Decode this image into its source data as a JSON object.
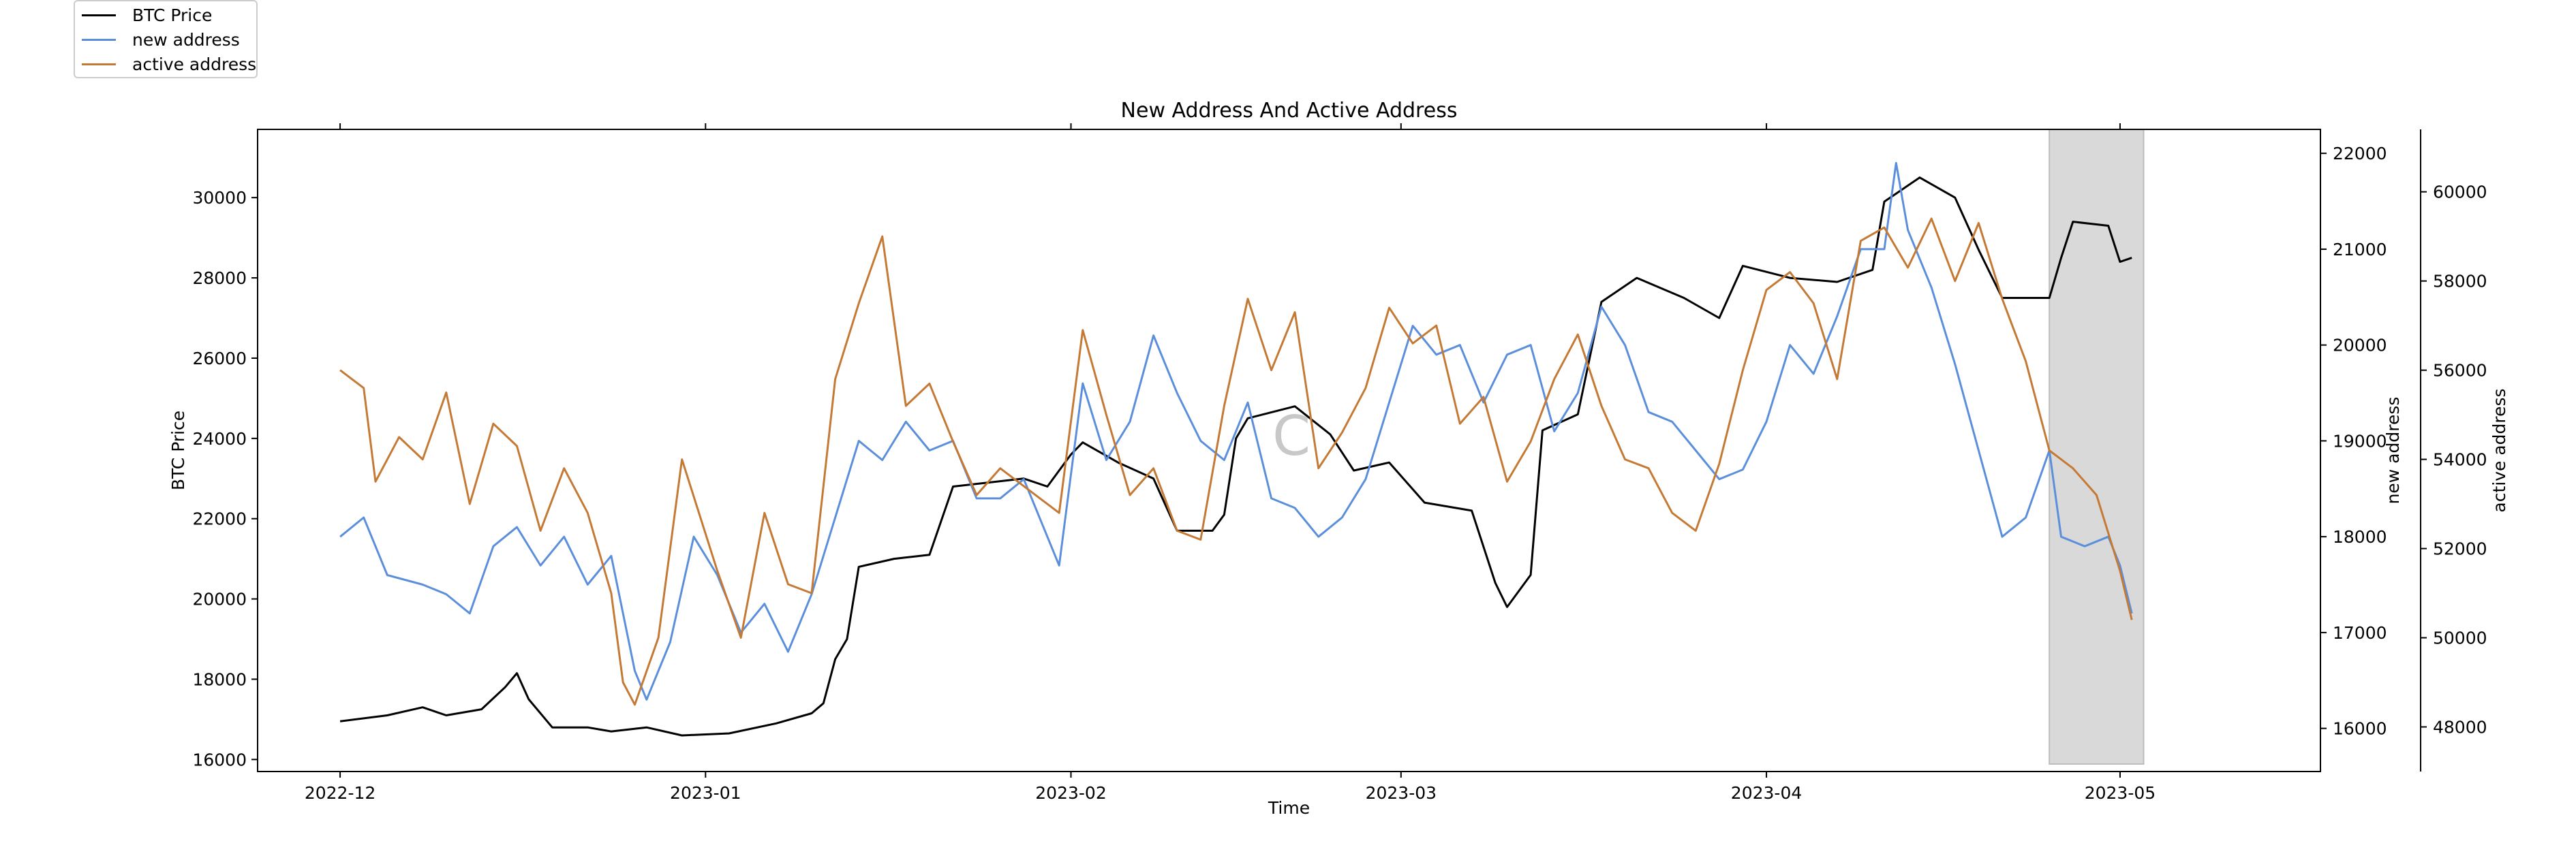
{
  "chart_data": {
    "type": "line",
    "title": "New Address And Active Address",
    "xlabel": "Time",
    "ylabel_left": "BTC Price",
    "ylabel_right1": "new address",
    "ylabel_right2": "active address",
    "x_ticks": [
      "2022-12",
      "2023-01",
      "2023-02",
      "2023-03",
      "2023-04",
      "2023-05"
    ],
    "x_range": [
      "2022-11-24",
      "2023-05-18"
    ],
    "y_left": {
      "ticks": [
        16000,
        18000,
        20000,
        22000,
        24000,
        26000,
        28000,
        30000
      ],
      "range": [
        15700,
        31700
      ]
    },
    "y_right1": {
      "ticks": [
        16000,
        17000,
        18000,
        19000,
        20000,
        21000,
        22000
      ],
      "range": [
        15550,
        22250
      ]
    },
    "y_right2": {
      "ticks": [
        48000,
        50000,
        52000,
        54000,
        56000,
        58000,
        60000
      ],
      "range": [
        47000,
        61400
      ]
    },
    "shaded_region": [
      "2023-04-25",
      "2023-05-03"
    ],
    "watermark": "C",
    "series": [
      {
        "name": "BTC Price",
        "axis": "left",
        "color": "#000000",
        "points": [
          [
            "2022-12-01",
            16950
          ],
          [
            "2022-12-05",
            17100
          ],
          [
            "2022-12-08",
            17300
          ],
          [
            "2022-12-10",
            17100
          ],
          [
            "2022-12-13",
            17250
          ],
          [
            "2022-12-15",
            17800
          ],
          [
            "2022-12-16",
            18150
          ],
          [
            "2022-12-17",
            17500
          ],
          [
            "2022-12-19",
            16800
          ],
          [
            "2022-12-22",
            16800
          ],
          [
            "2022-12-24",
            16700
          ],
          [
            "2022-12-27",
            16800
          ],
          [
            "2022-12-30",
            16600
          ],
          [
            "2023-01-03",
            16650
          ],
          [
            "2023-01-07",
            16900
          ],
          [
            "2023-01-10",
            17150
          ],
          [
            "2023-01-11",
            17400
          ],
          [
            "2023-01-12",
            18500
          ],
          [
            "2023-01-13",
            19000
          ],
          [
            "2023-01-14",
            20800
          ],
          [
            "2023-01-17",
            21000
          ],
          [
            "2023-01-20",
            21100
          ],
          [
            "2023-01-22",
            22800
          ],
          [
            "2023-01-25",
            22900
          ],
          [
            "2023-01-28",
            23000
          ],
          [
            "2023-01-30",
            22800
          ],
          [
            "2023-02-01",
            23600
          ],
          [
            "2023-02-02",
            23900
          ],
          [
            "2023-02-05",
            23400
          ],
          [
            "2023-02-08",
            23000
          ],
          [
            "2023-02-10",
            21700
          ],
          [
            "2023-02-13",
            21700
          ],
          [
            "2023-02-14",
            22100
          ],
          [
            "2023-02-15",
            24000
          ],
          [
            "2023-02-16",
            24500
          ],
          [
            "2023-02-20",
            24800
          ],
          [
            "2023-02-23",
            24100
          ],
          [
            "2023-02-25",
            23200
          ],
          [
            "2023-02-28",
            23400
          ],
          [
            "2023-03-03",
            22400
          ],
          [
            "2023-03-07",
            22200
          ],
          [
            "2023-03-09",
            20400
          ],
          [
            "2023-03-10",
            19800
          ],
          [
            "2023-03-12",
            20600
          ],
          [
            "2023-03-13",
            24200
          ],
          [
            "2023-03-16",
            24600
          ],
          [
            "2023-03-18",
            27400
          ],
          [
            "2023-03-21",
            28000
          ],
          [
            "2023-03-25",
            27500
          ],
          [
            "2023-03-28",
            27000
          ],
          [
            "2023-03-30",
            28300
          ],
          [
            "2023-04-03",
            28000
          ],
          [
            "2023-04-07",
            27900
          ],
          [
            "2023-04-10",
            28200
          ],
          [
            "2023-04-11",
            29900
          ],
          [
            "2023-04-14",
            30500
          ],
          [
            "2023-04-17",
            30000
          ],
          [
            "2023-04-19",
            28700
          ],
          [
            "2023-04-21",
            27500
          ],
          [
            "2023-04-25",
            27500
          ],
          [
            "2023-04-26",
            28500
          ],
          [
            "2023-04-27",
            29400
          ],
          [
            "2023-04-30",
            29300
          ],
          [
            "2023-05-01",
            28400
          ],
          [
            "2023-05-02",
            28500
          ]
        ]
      },
      {
        "name": "new address",
        "axis": "right1",
        "color": "#5b8fdc",
        "points": [
          [
            "2022-12-01",
            18000
          ],
          [
            "2022-12-03",
            18200
          ],
          [
            "2022-12-05",
            17600
          ],
          [
            "2022-12-08",
            17500
          ],
          [
            "2022-12-10",
            17400
          ],
          [
            "2022-12-12",
            17200
          ],
          [
            "2022-12-14",
            17900
          ],
          [
            "2022-12-16",
            18100
          ],
          [
            "2022-12-18",
            17700
          ],
          [
            "2022-12-20",
            18000
          ],
          [
            "2022-12-22",
            17500
          ],
          [
            "2022-12-24",
            17800
          ],
          [
            "2022-12-26",
            16600
          ],
          [
            "2022-12-27",
            16300
          ],
          [
            "2022-12-29",
            16900
          ],
          [
            "2022-12-31",
            18000
          ],
          [
            "2023-01-02",
            17600
          ],
          [
            "2023-01-04",
            17000
          ],
          [
            "2023-01-06",
            17300
          ],
          [
            "2023-01-08",
            16800
          ],
          [
            "2023-01-10",
            17400
          ],
          [
            "2023-01-12",
            18200
          ],
          [
            "2023-01-14",
            19000
          ],
          [
            "2023-01-16",
            18800
          ],
          [
            "2023-01-18",
            19200
          ],
          [
            "2023-01-20",
            18900
          ],
          [
            "2023-01-22",
            19000
          ],
          [
            "2023-01-24",
            18400
          ],
          [
            "2023-01-26",
            18400
          ],
          [
            "2023-01-28",
            18600
          ],
          [
            "2023-01-31",
            17700
          ],
          [
            "2023-02-02",
            19600
          ],
          [
            "2023-02-04",
            18800
          ],
          [
            "2023-02-06",
            19200
          ],
          [
            "2023-02-08",
            20100
          ],
          [
            "2023-02-10",
            19500
          ],
          [
            "2023-02-12",
            19000
          ],
          [
            "2023-02-14",
            18800
          ],
          [
            "2023-02-16",
            19400
          ],
          [
            "2023-02-18",
            18400
          ],
          [
            "2023-02-20",
            18300
          ],
          [
            "2023-02-22",
            18000
          ],
          [
            "2023-02-24",
            18200
          ],
          [
            "2023-02-26",
            18600
          ],
          [
            "2023-02-28",
            19400
          ],
          [
            "2023-03-02",
            20200
          ],
          [
            "2023-03-04",
            19900
          ],
          [
            "2023-03-06",
            20000
          ],
          [
            "2023-03-08",
            19400
          ],
          [
            "2023-03-10",
            19900
          ],
          [
            "2023-03-12",
            20000
          ],
          [
            "2023-03-14",
            19100
          ],
          [
            "2023-03-16",
            19500
          ],
          [
            "2023-03-18",
            20400
          ],
          [
            "2023-03-20",
            20000
          ],
          [
            "2023-03-22",
            19300
          ],
          [
            "2023-03-24",
            19200
          ],
          [
            "2023-03-26",
            18900
          ],
          [
            "2023-03-28",
            18600
          ],
          [
            "2023-03-30",
            18700
          ],
          [
            "2023-04-01",
            19200
          ],
          [
            "2023-04-03",
            20000
          ],
          [
            "2023-04-05",
            19700
          ],
          [
            "2023-04-07",
            20300
          ],
          [
            "2023-04-09",
            21000
          ],
          [
            "2023-04-11",
            21000
          ],
          [
            "2023-04-12",
            21900
          ],
          [
            "2023-04-13",
            21200
          ],
          [
            "2023-04-15",
            20600
          ],
          [
            "2023-04-17",
            19800
          ],
          [
            "2023-04-19",
            18900
          ],
          [
            "2023-04-21",
            18000
          ],
          [
            "2023-04-23",
            18200
          ],
          [
            "2023-04-25",
            18900
          ],
          [
            "2023-04-26",
            18000
          ],
          [
            "2023-04-28",
            17900
          ],
          [
            "2023-04-30",
            18000
          ],
          [
            "2023-05-01",
            17700
          ],
          [
            "2023-05-02",
            17200
          ]
        ]
      },
      {
        "name": "active address",
        "axis": "right2",
        "color": "#c47a35",
        "points": [
          [
            "2022-12-01",
            56000
          ],
          [
            "2022-12-03",
            55600
          ],
          [
            "2022-12-04",
            53500
          ],
          [
            "2022-12-06",
            54500
          ],
          [
            "2022-12-08",
            54000
          ],
          [
            "2022-12-10",
            55500
          ],
          [
            "2022-12-12",
            53000
          ],
          [
            "2022-12-14",
            54800
          ],
          [
            "2022-12-16",
            54300
          ],
          [
            "2022-12-18",
            52400
          ],
          [
            "2022-12-20",
            53800
          ],
          [
            "2022-12-22",
            52800
          ],
          [
            "2022-12-24",
            51000
          ],
          [
            "2022-12-25",
            49000
          ],
          [
            "2022-12-26",
            48500
          ],
          [
            "2022-12-28",
            50000
          ],
          [
            "2022-12-30",
            54000
          ],
          [
            "2023-01-02",
            51500
          ],
          [
            "2023-01-04",
            50000
          ],
          [
            "2023-01-06",
            52800
          ],
          [
            "2023-01-08",
            51200
          ],
          [
            "2023-01-10",
            51000
          ],
          [
            "2023-01-12",
            55800
          ],
          [
            "2023-01-14",
            57500
          ],
          [
            "2023-01-16",
            59000
          ],
          [
            "2023-01-18",
            55200
          ],
          [
            "2023-01-20",
            55700
          ],
          [
            "2023-01-22",
            54400
          ],
          [
            "2023-01-24",
            53200
          ],
          [
            "2023-01-26",
            53800
          ],
          [
            "2023-01-28",
            53400
          ],
          [
            "2023-01-31",
            52800
          ],
          [
            "2023-02-02",
            56900
          ],
          [
            "2023-02-04",
            55000
          ],
          [
            "2023-02-06",
            53200
          ],
          [
            "2023-02-08",
            53800
          ],
          [
            "2023-02-10",
            52400
          ],
          [
            "2023-02-12",
            52200
          ],
          [
            "2023-02-14",
            55200
          ],
          [
            "2023-02-16",
            57600
          ],
          [
            "2023-02-18",
            56000
          ],
          [
            "2023-02-20",
            57300
          ],
          [
            "2023-02-22",
            53800
          ],
          [
            "2023-02-24",
            54600
          ],
          [
            "2023-02-26",
            55600
          ],
          [
            "2023-02-28",
            57400
          ],
          [
            "2023-03-02",
            56600
          ],
          [
            "2023-03-04",
            57000
          ],
          [
            "2023-03-06",
            54800
          ],
          [
            "2023-03-08",
            55400
          ],
          [
            "2023-03-10",
            53500
          ],
          [
            "2023-03-12",
            54400
          ],
          [
            "2023-03-14",
            55800
          ],
          [
            "2023-03-16",
            56800
          ],
          [
            "2023-03-18",
            55200
          ],
          [
            "2023-03-20",
            54000
          ],
          [
            "2023-03-22",
            53800
          ],
          [
            "2023-03-24",
            52800
          ],
          [
            "2023-03-26",
            52400
          ],
          [
            "2023-03-28",
            53900
          ],
          [
            "2023-03-30",
            56000
          ],
          [
            "2023-04-01",
            57800
          ],
          [
            "2023-04-03",
            58200
          ],
          [
            "2023-04-05",
            57500
          ],
          [
            "2023-04-07",
            55800
          ],
          [
            "2023-04-09",
            58900
          ],
          [
            "2023-04-11",
            59200
          ],
          [
            "2023-04-13",
            58300
          ],
          [
            "2023-04-15",
            59400
          ],
          [
            "2023-04-17",
            58000
          ],
          [
            "2023-04-19",
            59300
          ],
          [
            "2023-04-21",
            57600
          ],
          [
            "2023-04-23",
            56200
          ],
          [
            "2023-04-25",
            54200
          ],
          [
            "2023-04-27",
            53800
          ],
          [
            "2023-04-29",
            53200
          ],
          [
            "2023-05-01",
            51500
          ],
          [
            "2023-05-02",
            50400
          ]
        ]
      }
    ]
  }
}
